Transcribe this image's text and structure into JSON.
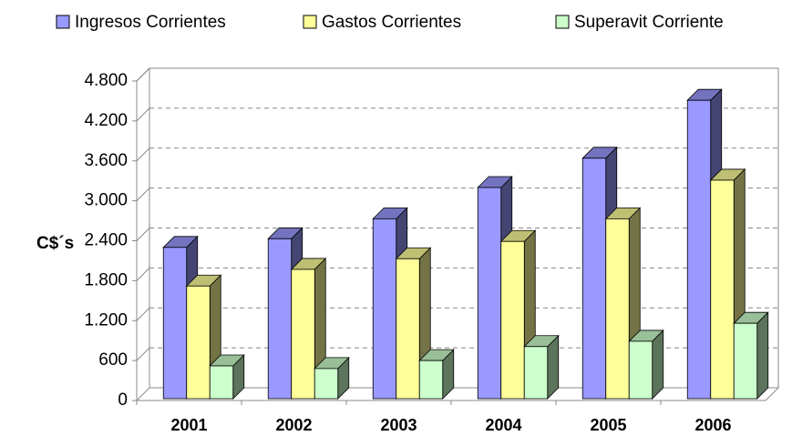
{
  "chart_data": {
    "type": "bar3d",
    "ylabel": "C$´s",
    "categories": [
      "2001",
      "2002",
      "2003",
      "2004",
      "2005",
      "2006"
    ],
    "series": [
      {
        "name": "Ingresos Corrientes",
        "color": "#9999ff",
        "values": [
          2300,
          2430,
          2730,
          3200,
          3640,
          4510
        ]
      },
      {
        "name": "Gastos Corrientes",
        "color": "#ffff99",
        "values": [
          1720,
          1970,
          2130,
          2390,
          2730,
          3310
        ]
      },
      {
        "name": "Superavit Corriente",
        "color": "#ccffcc",
        "values": [
          520,
          480,
          600,
          810,
          890,
          1160
        ]
      }
    ],
    "ylim": [
      0,
      4800
    ],
    "yticks": [
      0,
      600,
      {
        "value": 1200,
        "label": "1.200"
      },
      {
        "value": 1800,
        "label": "1.800"
      },
      {
        "value": 2400,
        "label": "2.400"
      },
      {
        "value": 3000,
        "label": "3.000"
      },
      {
        "value": 3600,
        "label": "3.600"
      },
      {
        "value": 4200,
        "label": "4.200"
      },
      {
        "value": 4800,
        "label": "4.800"
      }
    ],
    "grid": true,
    "legend": "top"
  }
}
